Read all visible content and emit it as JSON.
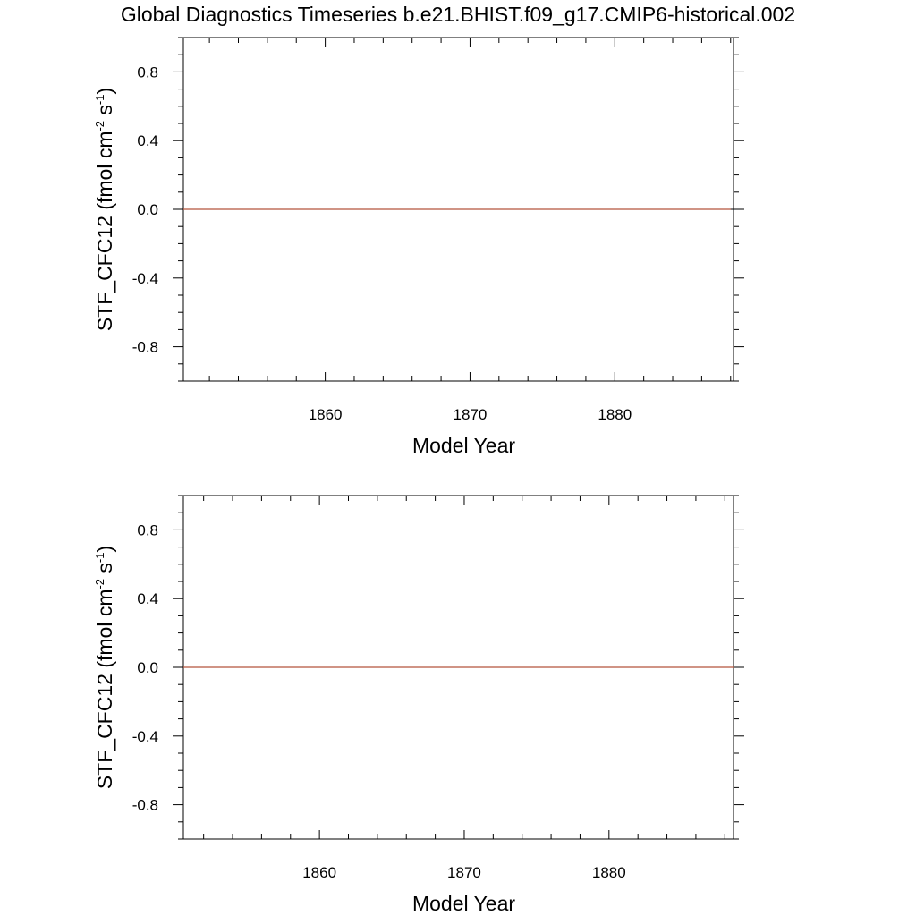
{
  "title": "Global Diagnostics Timeseries b.e21.BHIST.f09_g17.CMIP6-historical.002",
  "chart_data": [
    {
      "type": "line",
      "xlabel": "Model Year",
      "ylabel": {
        "base": "STF_CFC12 (fmol cm",
        "sup1": "-2",
        "mid": " s",
        "sup2": "-1",
        "end": ")"
      },
      "xlim": [
        1850.2,
        1888.2
      ],
      "ylim": [
        -1.0,
        1.0
      ],
      "x_ticks": [
        1860,
        1870,
        1880
      ],
      "x_tick_labels": [
        "1860",
        "1870",
        "1880"
      ],
      "y_ticks": [
        0.8,
        0.4,
        0.0,
        -0.4,
        -0.8
      ],
      "y_tick_labels": [
        "0.8",
        "0.4",
        "0.0",
        "-0.4",
        "-0.8"
      ],
      "grid": false,
      "zero_reference_line": true,
      "series": [
        {
          "color": "#b5533c",
          "x": [
            1850.2,
            1888.0
          ],
          "y": [
            0.0,
            0.0
          ]
        }
      ]
    },
    {
      "type": "line",
      "xlabel": "Model Year",
      "ylabel": {
        "base": "STF_CFC12 (fmol cm",
        "sup1": "-2",
        "mid": " s",
        "sup2": "-1",
        "end": ")"
      },
      "xlim": [
        1850.6,
        1888.6
      ],
      "ylim": [
        -1.0,
        1.0
      ],
      "x_ticks": [
        1860,
        1870,
        1880
      ],
      "x_tick_labels": [
        "1860",
        "1870",
        "1880"
      ],
      "y_ticks": [
        0.8,
        0.4,
        0.0,
        -0.4,
        -0.8
      ],
      "y_tick_labels": [
        "0.8",
        "0.4",
        "0.0",
        "-0.4",
        "-0.8"
      ],
      "grid": false,
      "zero_reference_line": true,
      "series": [
        {
          "color": "#b5533c",
          "x": [
            1850.6,
            1888.6
          ],
          "y": [
            0.0,
            0.0
          ]
        }
      ]
    }
  ]
}
